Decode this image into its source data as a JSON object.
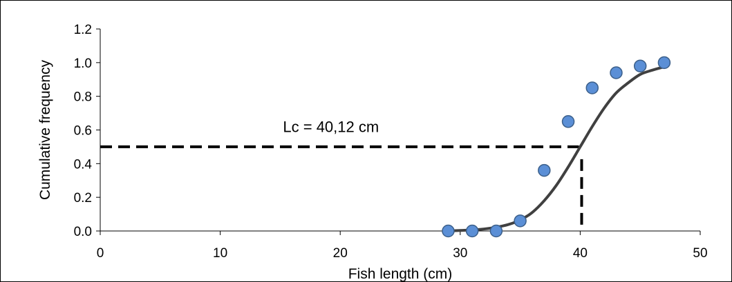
{
  "chart_data": {
    "type": "scatter",
    "title": "",
    "xlabel": "Fish length (cm)",
    "ylabel": "Cumulative frequency",
    "xlim": [
      0,
      50
    ],
    "ylim": [
      0,
      1.2
    ],
    "x_ticks": [
      0,
      10,
      20,
      30,
      40,
      50
    ],
    "x_tick_labels": [
      "0",
      "10",
      "20",
      "30",
      "40",
      "50"
    ],
    "y_ticks": [
      0,
      0.2,
      0.4,
      0.6,
      0.8,
      1.0,
      1.2
    ],
    "y_tick_labels": [
      "0.0",
      "0.2",
      "0.4",
      "0.6",
      "0.8",
      "1.0",
      "1.2"
    ],
    "grid": false,
    "legend": "none",
    "series": [
      {
        "type": "scatter",
        "x": [
          29,
          31,
          33,
          35,
          37,
          39,
          41,
          43,
          45,
          47
        ],
        "y": [
          0.0,
          0.0,
          0.0,
          0.06,
          0.36,
          0.65,
          0.85,
          0.94,
          0.98,
          1.0
        ],
        "color": "#5b8fd6",
        "edge_color": "#3b5f8a"
      },
      {
        "type": "line",
        "x": [
          29,
          30,
          31,
          32,
          33,
          34,
          35,
          36,
          37,
          38,
          39,
          40,
          41,
          42,
          43,
          44,
          45,
          46,
          47
        ],
        "y": [
          0.0,
          0.003,
          0.006,
          0.012,
          0.022,
          0.038,
          0.065,
          0.11,
          0.18,
          0.27,
          0.38,
          0.5,
          0.62,
          0.73,
          0.82,
          0.88,
          0.93,
          0.955,
          0.975
        ],
        "color": "#404040"
      }
    ],
    "reference_lines": {
      "lc_value": 40.12,
      "y_value": 0.5,
      "color": "#000000",
      "style": "dashed"
    },
    "annotations": [
      {
        "text": "Lc = 40,12 cm",
        "x": 15,
        "y": 0.62
      }
    ]
  },
  "colors": {
    "marker_fill": "#5b8fd6",
    "marker_edge": "#3b5f8a",
    "curve": "#404040",
    "dashed": "#000000",
    "axis": "#000000"
  }
}
